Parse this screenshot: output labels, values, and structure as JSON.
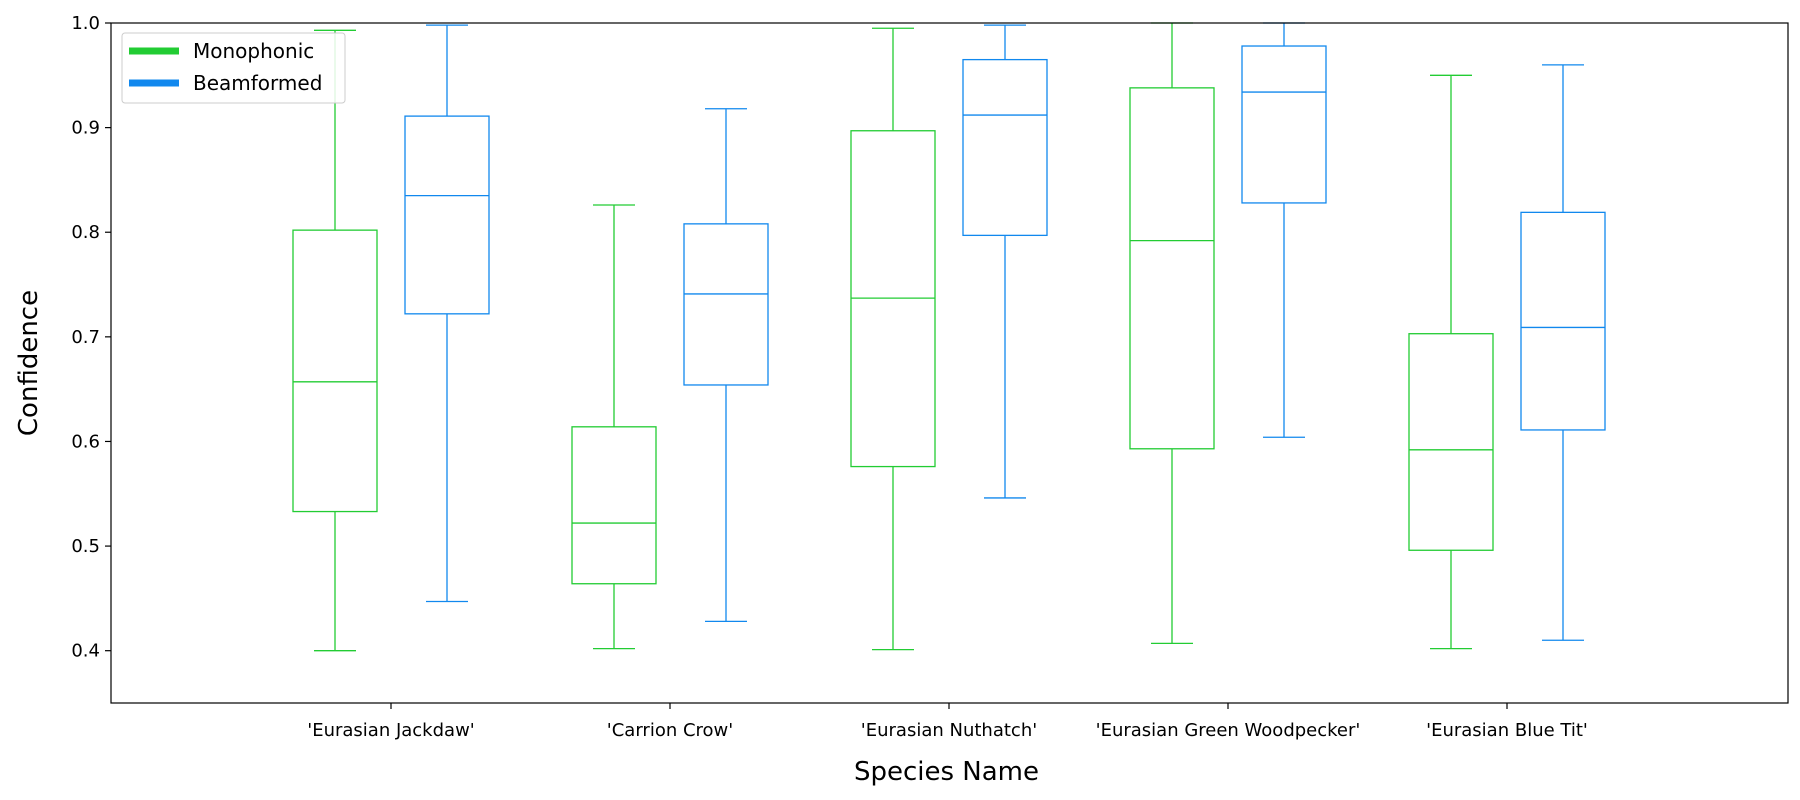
{
  "chart_data": {
    "type": "box",
    "title": "",
    "xlabel": "Species Name",
    "ylabel": "Confidence",
    "ylim": [
      0.35,
      1.0
    ],
    "yticks": [
      "0.4",
      "0.5",
      "0.6",
      "0.7",
      "0.8",
      "0.9",
      "1.0"
    ],
    "grid": false,
    "legend_position": "top-left",
    "categories": [
      "'Eurasian Jackdaw'",
      "'Carrion Crow'",
      "'Eurasian Nuthatch'",
      "'Eurasian Green Woodpecker'",
      "'Eurasian Blue Tit'"
    ],
    "series": [
      {
        "name": "Monophonic",
        "color": "#22cc33",
        "boxes": [
          {
            "whisker_low": 0.4,
            "q1": 0.533,
            "median": 0.657,
            "q3": 0.802,
            "whisker_high": 0.993
          },
          {
            "whisker_low": 0.402,
            "q1": 0.464,
            "median": 0.522,
            "q3": 0.614,
            "whisker_high": 0.826
          },
          {
            "whisker_low": 0.401,
            "q1": 0.576,
            "median": 0.737,
            "q3": 0.897,
            "whisker_high": 0.995
          },
          {
            "whisker_low": 0.407,
            "q1": 0.593,
            "median": 0.792,
            "q3": 0.938,
            "whisker_high": 1.0
          },
          {
            "whisker_low": 0.402,
            "q1": 0.496,
            "median": 0.592,
            "q3": 0.703,
            "whisker_high": 0.95
          }
        ]
      },
      {
        "name": "Beamformed",
        "color": "#1188ee",
        "boxes": [
          {
            "whisker_low": 0.447,
            "q1": 0.722,
            "median": 0.835,
            "q3": 0.911,
            "whisker_high": 0.998
          },
          {
            "whisker_low": 0.428,
            "q1": 0.654,
            "median": 0.741,
            "q3": 0.808,
            "whisker_high": 0.918
          },
          {
            "whisker_low": 0.546,
            "q1": 0.797,
            "median": 0.912,
            "q3": 0.965,
            "whisker_high": 0.998
          },
          {
            "whisker_low": 0.604,
            "q1": 0.828,
            "median": 0.934,
            "q3": 0.978,
            "whisker_high": 1.0
          },
          {
            "whisker_low": 0.41,
            "q1": 0.611,
            "median": 0.709,
            "q3": 0.819,
            "whisker_high": 0.96
          }
        ]
      }
    ]
  }
}
